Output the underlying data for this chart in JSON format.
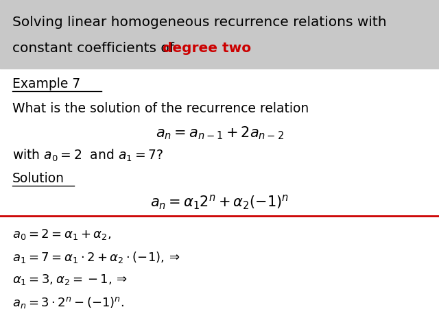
{
  "header_bg_color": "#c8c8c8",
  "header_text1": "Solving linear homogeneous recurrence relations with",
  "header_text2_black": "constant coefficients of ",
  "header_text2_red": "degree two",
  "white_bg": "#ffffff",
  "title_color": "#000000",
  "red_color": "#cc0000",
  "header_fontsize": 14.5,
  "body_fontsize": 13.5,
  "math_fontsize": 14,
  "small_math_fontsize": 13
}
